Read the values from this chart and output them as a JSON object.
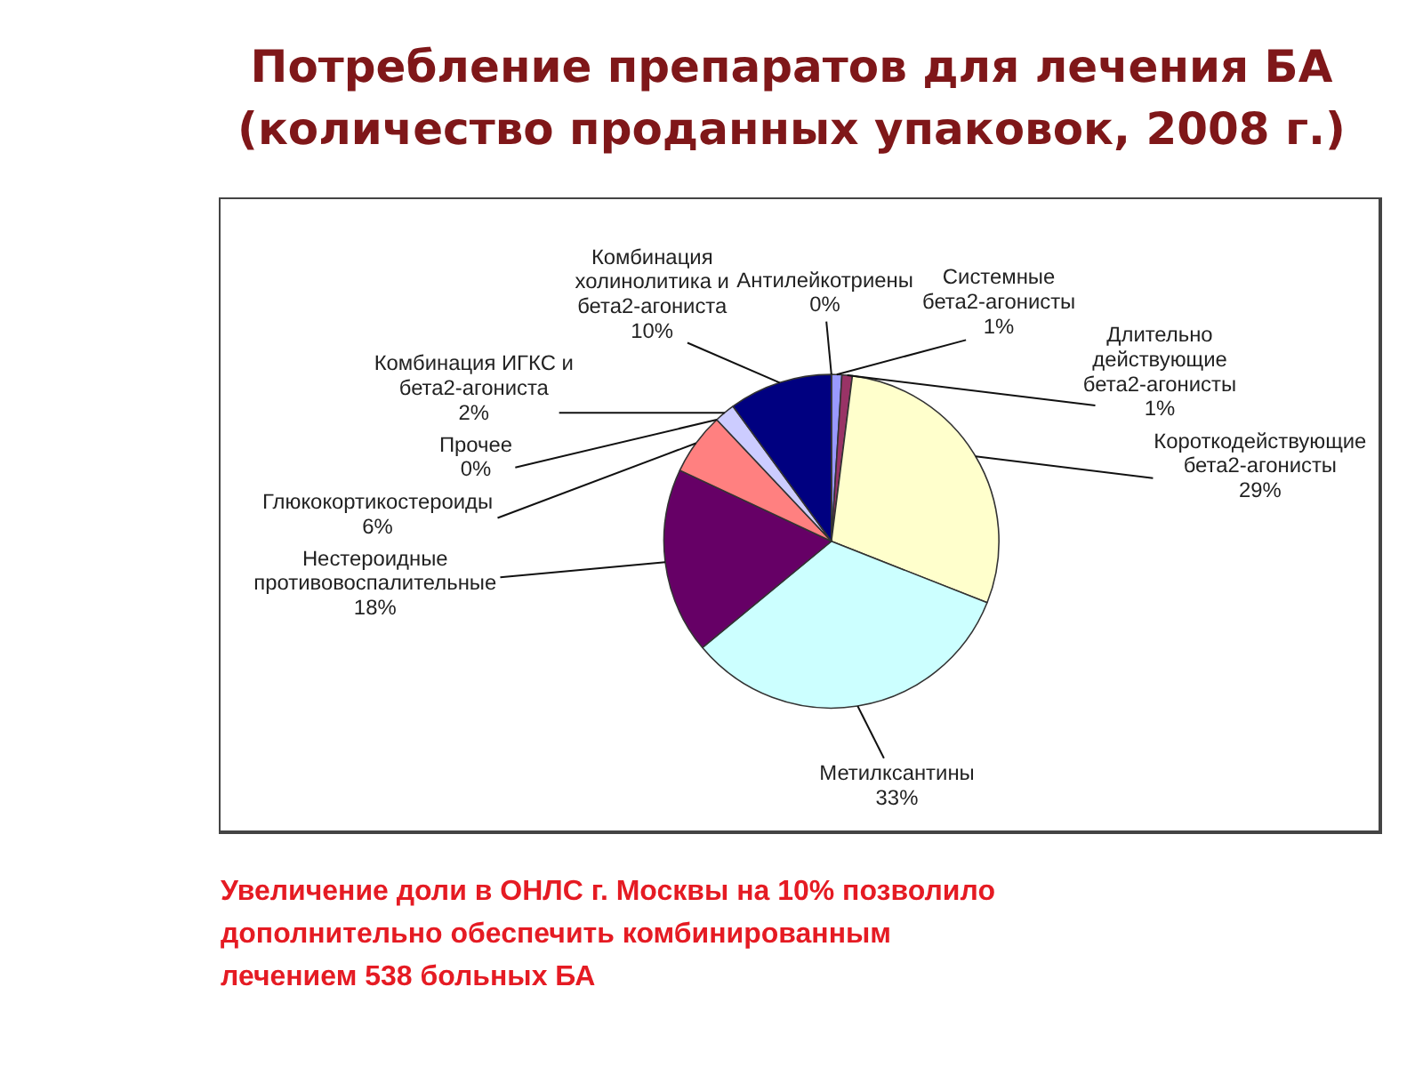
{
  "chart_data": {
    "type": "pie",
    "title": "Потребление препаратов для лечения БА",
    "subtitle": "(количество проданных упаковок, 2008 г.)",
    "categories": [
      "Системные бета2-агонисты",
      "Длительно действующие бета2-агонисты",
      "Короткодействующие бета2-агонисты",
      "Метилксантины",
      "Нестероидные противовоспалительные",
      "Глюкокортикостероиды",
      "Прочее",
      "Комбинация ИГКС и бета2-агониста",
      "Комбинация холинолитика и бета2-агониста",
      "Антилейкотриены"
    ],
    "values": [
      1,
      1,
      29,
      33,
      18,
      6,
      0,
      2,
      10,
      0
    ],
    "value_labels": [
      "1%",
      "1%",
      "29%",
      "33%",
      "18%",
      "6%",
      "0%",
      "2%",
      "10%",
      "0%"
    ],
    "colors": [
      "#9999ff",
      "#993366",
      "#ffffcc",
      "#ccffff",
      "#660066",
      "#ff8080",
      "#0066cc",
      "#ccccff",
      "#000080",
      "#ff00ff"
    ],
    "legend": false,
    "annotations": [
      "Увеличение доли в ОНЛС г. Москвы на 10% позволило дополнительно обеспечить комбинированным лечением 538 больных БА"
    ]
  }
}
